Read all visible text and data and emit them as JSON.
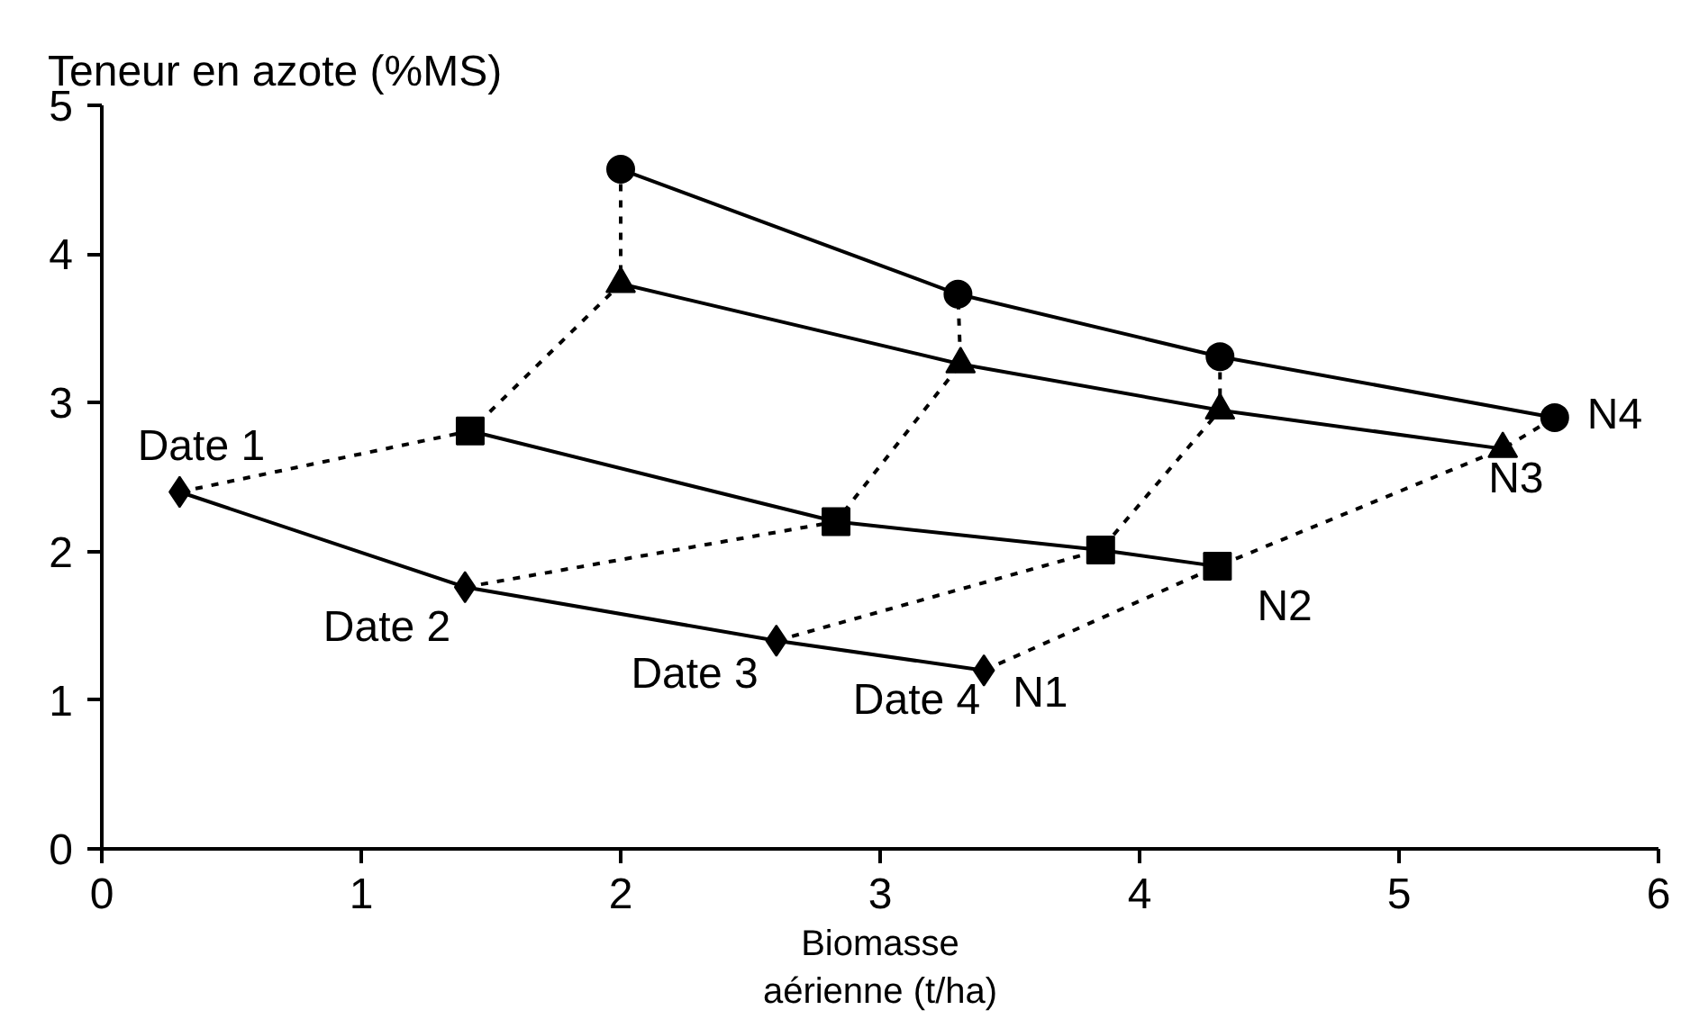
{
  "chart_data": {
    "type": "line",
    "ylabel": "Teneur en azote (%MS)",
    "xlabel": "Biomasse\naérienne (t/ha)",
    "xlim": [
      0,
      6
    ],
    "xticks": [
      0,
      1,
      2,
      3,
      4,
      5,
      6
    ],
    "ylim": [
      0,
      5
    ],
    "yticks": [
      0,
      1,
      2,
      3,
      4,
      5
    ],
    "grid": false,
    "series": [
      {
        "name": "N1",
        "color": "#000000",
        "marker": "diamond",
        "line_style": "solid",
        "x": [
          0.3,
          1.4,
          2.6,
          3.4
        ],
        "values": [
          2.4,
          1.76,
          1.4,
          1.2
        ]
      },
      {
        "name": "N2",
        "color": "#000000",
        "marker": "square",
        "line_style": "solid",
        "x": [
          1.42,
          2.83,
          3.85,
          4.3
        ],
        "values": [
          2.81,
          2.2,
          2.01,
          1.9
        ]
      },
      {
        "name": "N3",
        "color": "#000000",
        "marker": "triangle",
        "line_style": "solid",
        "x": [
          2.0,
          3.31,
          4.31,
          5.4
        ],
        "values": [
          3.8,
          3.26,
          2.95,
          2.69
        ]
      },
      {
        "name": "N4",
        "color": "#000000",
        "marker": "circle",
        "line_style": "solid",
        "x": [
          2.0,
          3.3,
          4.31,
          5.6
        ],
        "values": [
          4.57,
          3.73,
          3.31,
          2.9
        ]
      },
      {
        "name": "Date 1",
        "color": "#000000",
        "marker": "none",
        "line_style": "dashed",
        "x": [
          0.3,
          1.42,
          2.0,
          2.0
        ],
        "values": [
          2.4,
          2.81,
          3.8,
          4.57
        ]
      },
      {
        "name": "Date 2",
        "color": "#000000",
        "marker": "none",
        "line_style": "dashed",
        "x": [
          1.4,
          2.83,
          3.31,
          3.3
        ],
        "values": [
          1.76,
          2.2,
          3.26,
          3.73
        ]
      },
      {
        "name": "Date 3",
        "color": "#000000",
        "marker": "none",
        "line_style": "dashed",
        "x": [
          2.6,
          3.85,
          4.31,
          4.31
        ],
        "values": [
          1.4,
          2.01,
          2.95,
          3.31
        ]
      },
      {
        "name": "Date 4",
        "color": "#000000",
        "marker": "none",
        "line_style": "dashed",
        "x": [
          3.4,
          4.3,
          5.4,
          5.6
        ],
        "values": [
          1.2,
          1.9,
          2.69,
          2.9
        ]
      }
    ]
  }
}
